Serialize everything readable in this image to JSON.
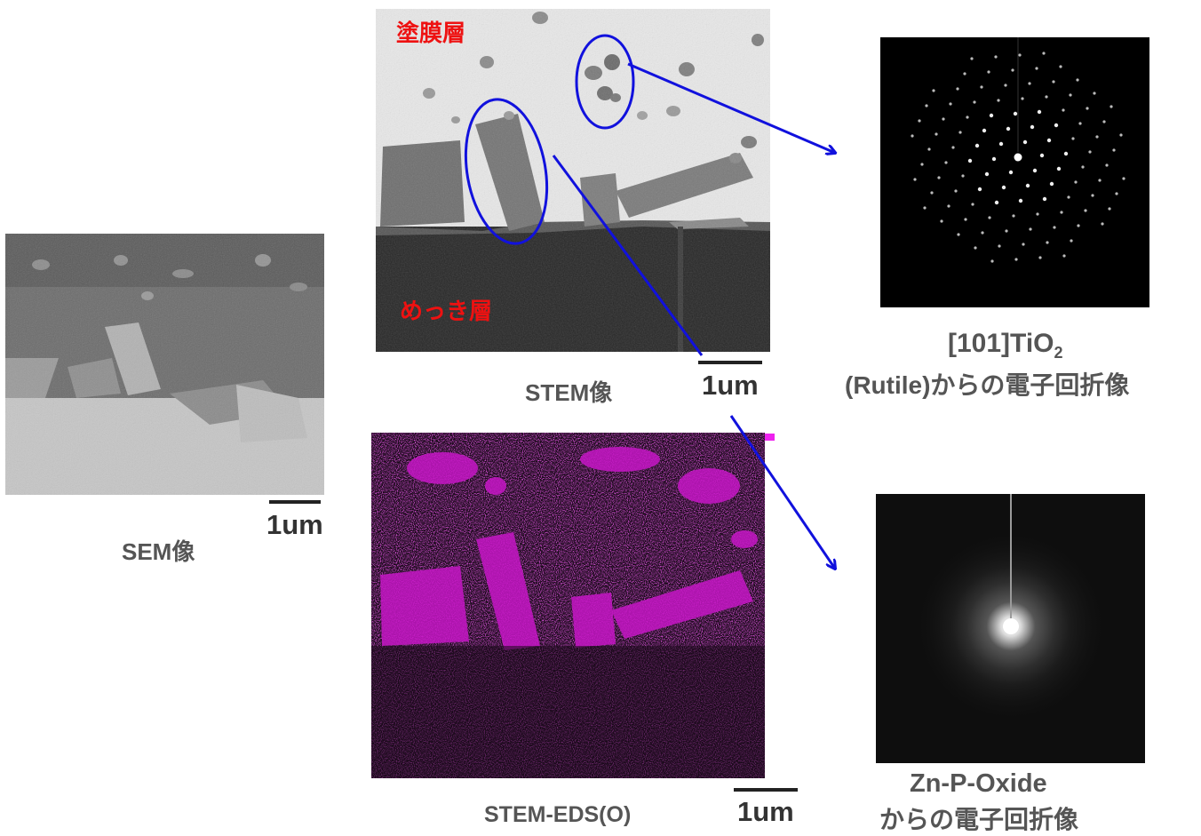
{
  "sem": {
    "caption": "SEM像",
    "scale_label": "1um"
  },
  "stem": {
    "caption": "STEM像",
    "scale_label": "1um",
    "label_coating": "塗膜層",
    "label_plating": "めっき層"
  },
  "eds": {
    "caption": "STEM-EDS(O)",
    "scale_label": "1um"
  },
  "diffraction_tio2": {
    "caption_line1_main": "[101]TiO",
    "caption_line1_sub": "2",
    "caption_line2": "(Rutile)からの電子回折像"
  },
  "diffraction_oxide": {
    "caption_line1": "Zn-P-Oxide",
    "caption_line2": "からの電子回折像"
  },
  "colors": {
    "annotation": "#1111dd",
    "label_red": "#ee1111",
    "eds_magenta": "#d81ad8",
    "caption_gray": "#555555"
  }
}
